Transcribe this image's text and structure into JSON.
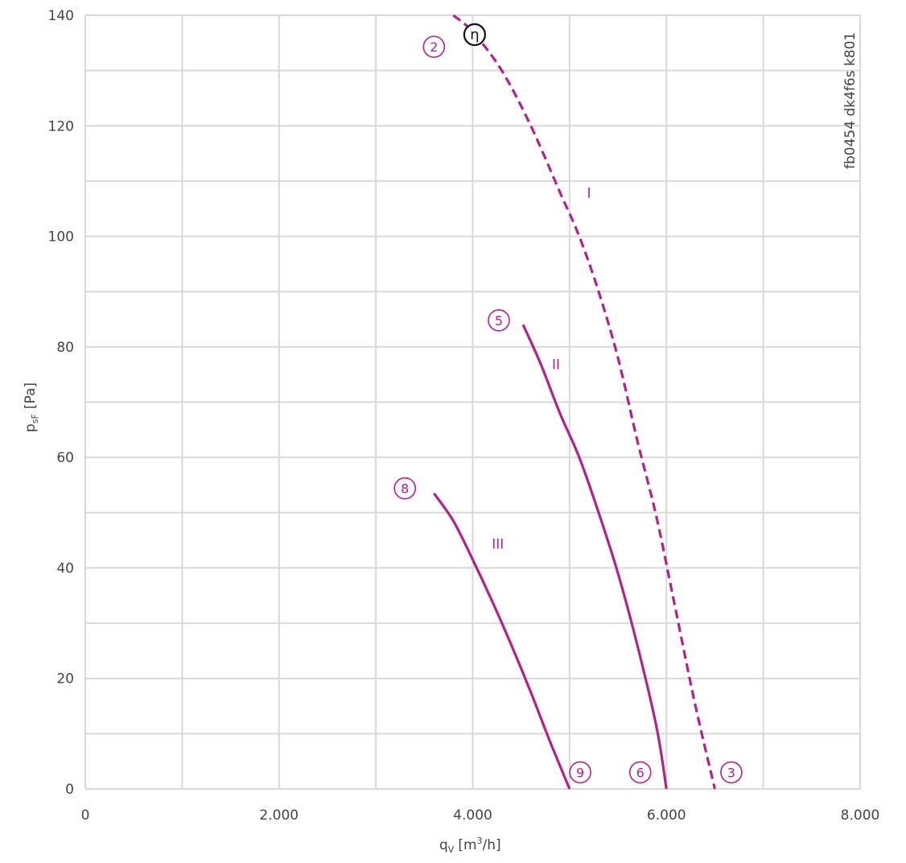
{
  "chart_data": {
    "type": "line",
    "xlabel": {
      "main": "q",
      "sub": "V",
      "unit": "[m",
      "sup": "3",
      "unit_end": "/h]"
    },
    "ylabel": {
      "main": "p",
      "sub": "sF",
      "unit": "[Pa]"
    },
    "xlim": [
      0,
      8000
    ],
    "ylim": [
      0,
      140
    ],
    "x_ticks": [
      {
        "value": 0,
        "label": "0"
      },
      {
        "value": 2000,
        "label": "2.000"
      },
      {
        "value": 4000,
        "label": "4.000"
      },
      {
        "value": 6000,
        "label": "6.000"
      },
      {
        "value": 8000,
        "label": "8.000"
      }
    ],
    "y_ticks": [
      {
        "value": 0,
        "label": "0"
      },
      {
        "value": 20,
        "label": "20"
      },
      {
        "value": 40,
        "label": "40"
      },
      {
        "value": 60,
        "label": "60"
      },
      {
        "value": 80,
        "label": "80"
      },
      {
        "value": 100,
        "label": "100"
      },
      {
        "value": 120,
        "label": "120"
      },
      {
        "value": 140,
        "label": "140"
      }
    ],
    "x_grid": [
      0,
      1000,
      2000,
      3000,
      4000,
      5000,
      6000,
      7000,
      8000
    ],
    "y_grid": [
      0,
      10,
      20,
      30,
      40,
      50,
      60,
      70,
      80,
      90,
      100,
      110,
      120,
      130,
      140
    ],
    "grid": true,
    "code_text": "fb0454 dk4f6s k801",
    "colors": {
      "curve": "#b0228c",
      "grid": "#d9d9d9",
      "text": "#444444",
      "eta": "#111111"
    },
    "series": [
      {
        "name": "I",
        "style": "dashed",
        "label_at": {
          "x": 5200,
          "y": 107
        },
        "x": [
          3800,
          4000,
          4300,
          4600,
          4900,
          5100,
          5300,
          5500,
          5700,
          5900,
          6100,
          6300,
          6500
        ],
        "y": [
          140,
          137,
          130,
          120,
          108,
          100,
          90,
          78,
          63,
          49,
          32,
          15,
          0
        ]
      },
      {
        "name": "II",
        "style": "solid",
        "label_at": {
          "x": 4860,
          "y": 76
        },
        "x": [
          4520,
          4700,
          4900,
          5100,
          5300,
          5500,
          5700,
          5900,
          6000
        ],
        "y": [
          84,
          77,
          68,
          60,
          50,
          39,
          26,
          11,
          0
        ]
      },
      {
        "name": "III",
        "style": "solid",
        "label_at": {
          "x": 4260,
          "y": 43.5
        },
        "x": [
          3600,
          3800,
          4000,
          4200,
          4400,
          4600,
          4800,
          5000
        ],
        "y": [
          53.5,
          48.5,
          41.5,
          34,
          26,
          17.5,
          8.5,
          0
        ]
      }
    ],
    "markers": [
      {
        "label": "2",
        "x": 3600,
        "y": 134.3
      },
      {
        "label": "5",
        "x": 4270,
        "y": 84.8
      },
      {
        "label": "8",
        "x": 3300,
        "y": 54.4
      },
      {
        "label": "9",
        "x": 5110,
        "y": 3
      },
      {
        "label": "6",
        "x": 5730,
        "y": 3
      },
      {
        "label": "3",
        "x": 6670,
        "y": 3
      }
    ],
    "eta_marker": {
      "label": "η",
      "x": 4020,
      "y": 136.5
    }
  }
}
